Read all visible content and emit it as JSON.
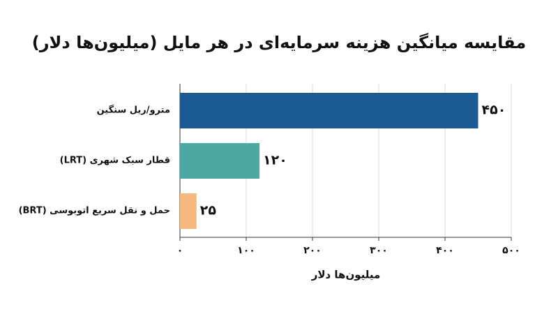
{
  "chart_data": {
    "type": "hbar",
    "title": "مقایسه میانگین هزینه سرمایه‌ای در هر مایل (میلیون‌ها دلار)",
    "categories": [
      "مترو/ریل سنگین",
      "قطار سبک شهری (LRT)",
      "حمل و نقل سریع اتوبوسی (BRT)"
    ],
    "values": [
      450,
      120,
      25
    ],
    "value_labels": [
      "۴۵۰",
      "۱۲۰",
      "۲۵"
    ],
    "colors": [
      "#1b5a95",
      "#4ea9a4",
      "#f8b97f"
    ],
    "x_label": "میلیون‌ها دلار",
    "xlim": [
      0,
      500
    ],
    "xticks": [
      {
        "value": 0,
        "label": "۰"
      },
      {
        "value": 100,
        "label": "۱۰۰"
      },
      {
        "value": 200,
        "label": "۲۰۰"
      },
      {
        "value": 300,
        "label": "۳۰۰"
      },
      {
        "value": 400,
        "label": "۴۰۰"
      },
      {
        "value": 500,
        "label": "۵۰۰"
      }
    ],
    "grid": true
  }
}
